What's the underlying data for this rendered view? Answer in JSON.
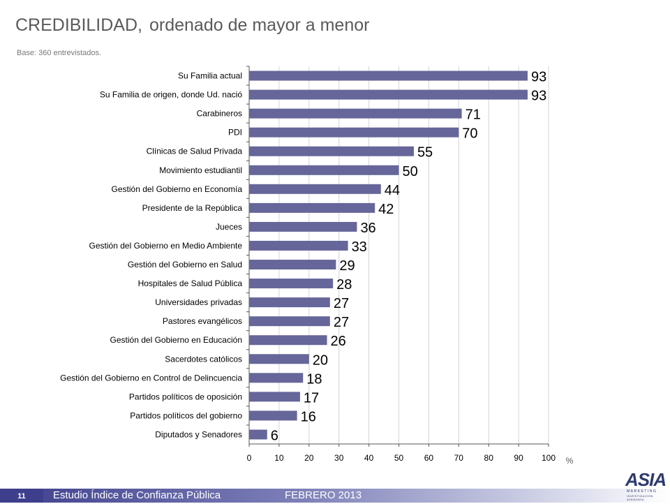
{
  "header": {
    "title_main": "CREDIBILIDAD,",
    "title_sub": "ordenado de mayor a menor",
    "base": "Base:  360 entrevistados."
  },
  "chart_data": {
    "type": "bar",
    "orientation": "horizontal",
    "categories": [
      "Su Familia actual",
      "Su Familia de origen, donde Ud. nació",
      "Carabineros",
      "PDI",
      "Clínicas de Salud Privada",
      "Movimiento estudiantil",
      "Gestión del Gobierno en Economía",
      "Presidente de la República",
      "Jueces",
      "Gestión del Gobierno en Medio Ambiente",
      "Gestión del Gobierno en Salud",
      "Hospitales de Salud Pública",
      "Universidades privadas",
      "Pastores evangélicos",
      "Gestión del Gobierno en Educación",
      "Sacerdotes católicos",
      "Gestión del Gobierno en Control de Delincuencia",
      "Partidos políticos de oposición",
      "Partidos políticos del gobierno",
      "Diputados y Senadores"
    ],
    "values": [
      93,
      93,
      71,
      70,
      55,
      50,
      44,
      42,
      36,
      33,
      29,
      28,
      27,
      27,
      26,
      20,
      18,
      17,
      16,
      6
    ],
    "xlim": [
      0,
      100
    ],
    "xticks": [
      0,
      10,
      20,
      30,
      40,
      50,
      60,
      70,
      80,
      90,
      100
    ],
    "xunit": "%",
    "grid": true,
    "bar_color": "#66669a"
  },
  "footer": {
    "page_number": "11",
    "study": "Estudio  Índice de Confianza Pública",
    "date": "FEBRERO 2013",
    "logo_text": "ASIA",
    "logo_sub": "MARKETING",
    "logo_tagline": "INVESTIGACIÓN AVANZADA"
  }
}
